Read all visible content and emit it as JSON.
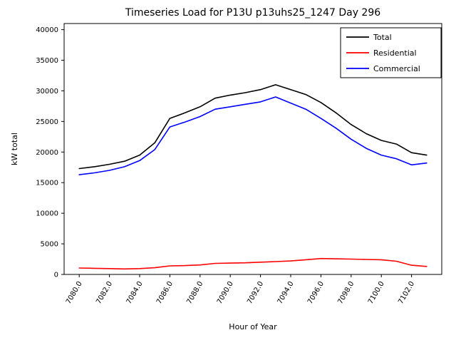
{
  "chart_data": {
    "type": "line",
    "title": "Timeseries Load for P13U p13uhs25_1247  Day 296",
    "xlabel": "Hour of Year",
    "ylabel": "kW total",
    "xlim": [
      7079.0,
      7104.0
    ],
    "ylim": [
      0,
      41000
    ],
    "grid": false,
    "legend_position": "upper right",
    "x": [
      7080,
      7081,
      7082,
      7083,
      7084,
      7085,
      7086,
      7087,
      7088,
      7089,
      7090,
      7091,
      7092,
      7093,
      7094,
      7095,
      7096,
      7097,
      7098,
      7099,
      7100,
      7101,
      7102,
      7103
    ],
    "series": [
      {
        "name": "Total",
        "color": "#000000",
        "values": [
          17300,
          17600,
          18000,
          18500,
          19500,
          21500,
          25500,
          26400,
          27400,
          28800,
          29300,
          29700,
          30200,
          31000,
          30200,
          29400,
          28100,
          26400,
          24500,
          23000,
          21900,
          21300,
          19900,
          19500
        ]
      },
      {
        "name": "Residential",
        "color": "#ff0000",
        "values": [
          1050,
          1000,
          950,
          900,
          950,
          1100,
          1400,
          1450,
          1550,
          1800,
          1850,
          1900,
          2000,
          2100,
          2200,
          2400,
          2600,
          2550,
          2500,
          2450,
          2400,
          2150,
          1500,
          1300
        ]
      },
      {
        "name": "Commercial",
        "color": "#0000ff",
        "values": [
          16300,
          16600,
          17000,
          17600,
          18600,
          20400,
          24100,
          24900,
          25800,
          27000,
          27400,
          27800,
          28200,
          29000,
          28000,
          27000,
          25500,
          23900,
          22100,
          20600,
          19500,
          18900,
          17900,
          18200
        ]
      }
    ],
    "xticks": [
      {
        "value": 7080,
        "label": "7080.0"
      },
      {
        "value": 7082,
        "label": "7082.0"
      },
      {
        "value": 7084,
        "label": "7084.0"
      },
      {
        "value": 7086,
        "label": "7086.0"
      },
      {
        "value": 7088,
        "label": "7088.0"
      },
      {
        "value": 7090,
        "label": "7090.0"
      },
      {
        "value": 7092,
        "label": "7092.0"
      },
      {
        "value": 7094,
        "label": "7094.0"
      },
      {
        "value": 7096,
        "label": "7096.0"
      },
      {
        "value": 7098,
        "label": "7098.0"
      },
      {
        "value": 7100,
        "label": "7100.0"
      },
      {
        "value": 7102,
        "label": "7102.0"
      }
    ],
    "yticks": [
      {
        "value": 0,
        "label": "0"
      },
      {
        "value": 5000,
        "label": "5000"
      },
      {
        "value": 10000,
        "label": "10000"
      },
      {
        "value": 15000,
        "label": "15000"
      },
      {
        "value": 20000,
        "label": "20000"
      },
      {
        "value": 25000,
        "label": "25000"
      },
      {
        "value": 30000,
        "label": "30000"
      },
      {
        "value": 35000,
        "label": "35000"
      },
      {
        "value": 40000,
        "label": "40000"
      }
    ]
  }
}
